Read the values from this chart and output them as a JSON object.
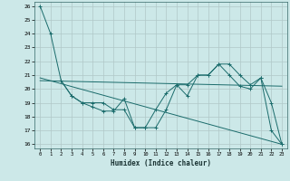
{
  "xlabel": "Humidex (Indice chaleur)",
  "bg_color": "#cce8e8",
  "grid_color": "#b0c8c8",
  "line_color": "#1a6b6b",
  "xlim": [
    -0.5,
    23.5
  ],
  "ylim": [
    15.7,
    26.3
  ],
  "xticks": [
    0,
    1,
    2,
    3,
    4,
    5,
    6,
    7,
    8,
    9,
    10,
    11,
    12,
    13,
    14,
    15,
    16,
    17,
    18,
    19,
    20,
    21,
    22,
    23
  ],
  "yticks": [
    16,
    17,
    18,
    19,
    20,
    21,
    22,
    23,
    24,
    25,
    26
  ],
  "series1_x": [
    0,
    1,
    2,
    3,
    4,
    5,
    6,
    7,
    8,
    9,
    10,
    11,
    12,
    13,
    14,
    15,
    16,
    17,
    18,
    19,
    20,
    21,
    22,
    23
  ],
  "series1_y": [
    26.0,
    24.0,
    20.6,
    19.5,
    19.0,
    18.7,
    18.4,
    18.4,
    19.3,
    17.2,
    17.2,
    18.5,
    19.7,
    20.3,
    19.5,
    21.0,
    21.0,
    21.8,
    21.0,
    20.2,
    20.0,
    20.8,
    17.0,
    16.0
  ],
  "series2_x": [
    2,
    3,
    4,
    5,
    6,
    7,
    8,
    9,
    10,
    11,
    12,
    13,
    14,
    15,
    16,
    17,
    18,
    19,
    20,
    21,
    22,
    23
  ],
  "series2_y": [
    20.6,
    19.5,
    19.0,
    19.0,
    19.0,
    18.5,
    18.5,
    17.2,
    17.2,
    17.2,
    18.5,
    20.3,
    20.3,
    21.0,
    21.0,
    21.8,
    21.8,
    21.0,
    20.3,
    20.8,
    19.0,
    16.0
  ],
  "series3_x": [
    0,
    23
  ],
  "series3_y": [
    20.6,
    20.2
  ],
  "series4_x": [
    0,
    23
  ],
  "series4_y": [
    20.8,
    16.0
  ]
}
